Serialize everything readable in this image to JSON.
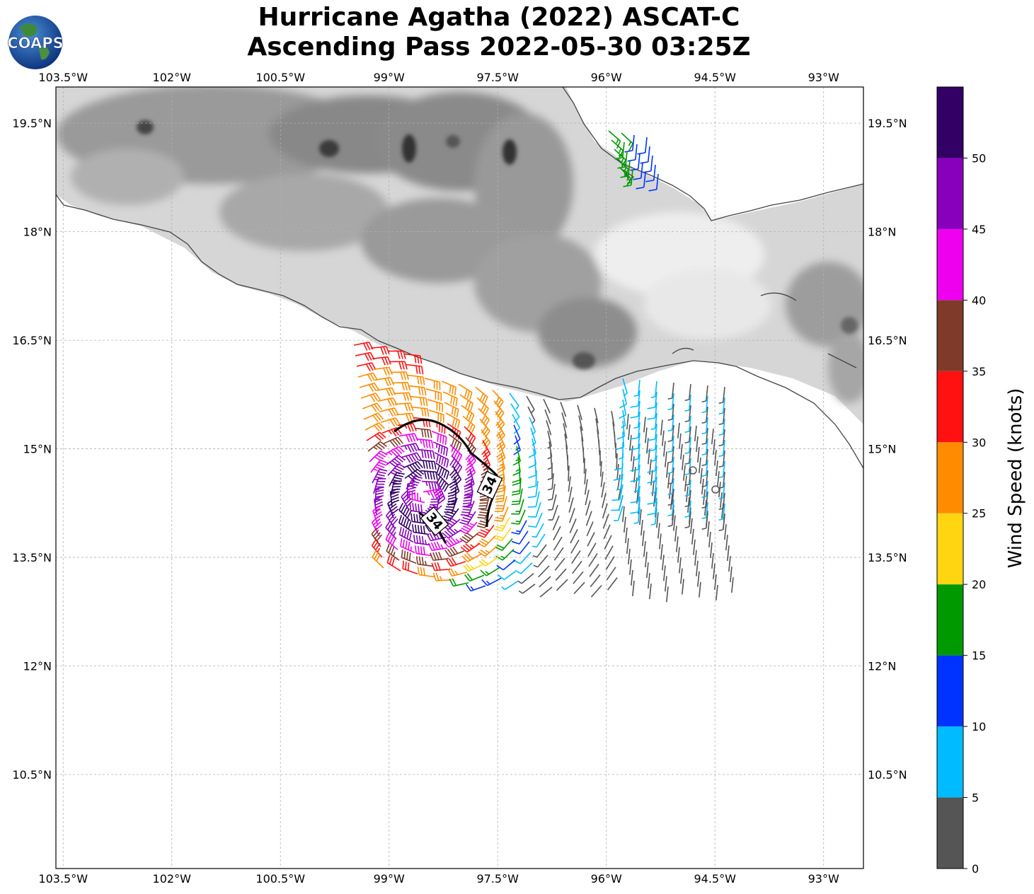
{
  "title": {
    "line1": "Hurricane Agatha (2022) ASCAT-C",
    "line2": "Ascending Pass 2022-05-30 03:25Z"
  },
  "logo": {
    "text": "COAPS",
    "icon": "globe-logo-icon"
  },
  "map": {
    "lon_labels": [
      "103.5°W",
      "102°W",
      "100.5°W",
      "99°W",
      "97.5°W",
      "96°W",
      "94.5°W",
      "93°W"
    ],
    "lat_labels": [
      "19.5°N",
      "18°N",
      "16.5°N",
      "15°N",
      "13.5°N",
      "12°N",
      "10.5°N"
    ],
    "lon_range": [
      -103.6,
      -92.45
    ],
    "lat_range": [
      9.2,
      20.0
    ],
    "contour_label": "34",
    "gridlines": true
  },
  "colorbar": {
    "label": "Wind Speed (knots)",
    "ticks": [
      "0",
      "5",
      "10",
      "15",
      "20",
      "25",
      "30",
      "35",
      "40",
      "45",
      "50"
    ],
    "bins": [
      {
        "from": 0,
        "to": 5,
        "color": "#555555"
      },
      {
        "from": 5,
        "to": 10,
        "color": "#00bbff"
      },
      {
        "from": 10,
        "to": 15,
        "color": "#0033ff"
      },
      {
        "from": 15,
        "to": 20,
        "color": "#009900"
      },
      {
        "from": 20,
        "to": 25,
        "color": "#ffd511"
      },
      {
        "from": 25,
        "to": 30,
        "color": "#ff8c00"
      },
      {
        "from": 30,
        "to": 35,
        "color": "#ff1111"
      },
      {
        "from": 35,
        "to": 40,
        "color": "#803a2a"
      },
      {
        "from": 40,
        "to": 45,
        "color": "#ee00ee"
      },
      {
        "from": 45,
        "to": 50,
        "color": "#8800bb"
      },
      {
        "from": 50,
        "to": 55,
        "color": "#330066"
      }
    ]
  }
}
